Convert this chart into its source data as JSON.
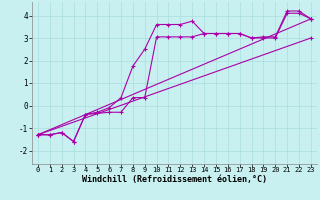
{
  "background_color": "#c8f0f0",
  "grid_color": "#aadddd",
  "line_color": "#aa00aa",
  "marker_style": "+",
  "marker_size": 3,
  "line_width": 0.8,
  "xlim": [
    -0.5,
    23.5
  ],
  "ylim": [
    -2.6,
    4.6
  ],
  "xlabel": "Windchill (Refroidissement éolien,°C)",
  "xlabel_fontsize": 6,
  "xtick_fontsize": 5,
  "ytick_fontsize": 5.5,
  "yticks": [
    -2,
    -1,
    0,
    1,
    2,
    3,
    4
  ],
  "xticks": [
    0,
    1,
    2,
    3,
    4,
    5,
    6,
    7,
    8,
    9,
    10,
    11,
    12,
    13,
    14,
    15,
    16,
    17,
    18,
    19,
    20,
    21,
    22,
    23
  ],
  "series": [
    {
      "x": [
        0,
        1,
        2,
        3,
        4,
        5,
        6,
        7,
        8,
        9,
        10,
        11,
        12,
        13,
        14,
        15,
        16,
        17,
        18,
        19,
        20,
        21,
        22,
        23
      ],
      "y": [
        -1.3,
        -1.3,
        -1.2,
        -1.6,
        -0.4,
        -0.3,
        -0.1,
        0.35,
        1.75,
        2.5,
        3.6,
        3.6,
        3.6,
        3.75,
        3.2,
        3.2,
        3.2,
        3.2,
        3.0,
        3.05,
        3.05,
        4.2,
        4.2,
        3.85
      ]
    },
    {
      "x": [
        0,
        1,
        2,
        3,
        4,
        5,
        6,
        7,
        8,
        9,
        10,
        11,
        12,
        13,
        14,
        15,
        16,
        17,
        18,
        19,
        20,
        21,
        22,
        23
      ],
      "y": [
        -1.3,
        -1.3,
        -1.2,
        -1.6,
        -0.4,
        -0.35,
        -0.3,
        -0.3,
        0.35,
        0.35,
        3.05,
        3.05,
        3.05,
        3.05,
        3.2,
        3.2,
        3.2,
        3.2,
        3.0,
        3.0,
        3.0,
        4.1,
        4.1,
        3.85
      ]
    },
    {
      "x": [
        0,
        23
      ],
      "y": [
        -1.3,
        3.85
      ]
    },
    {
      "x": [
        0,
        23
      ],
      "y": [
        -1.3,
        3.0
      ]
    }
  ]
}
